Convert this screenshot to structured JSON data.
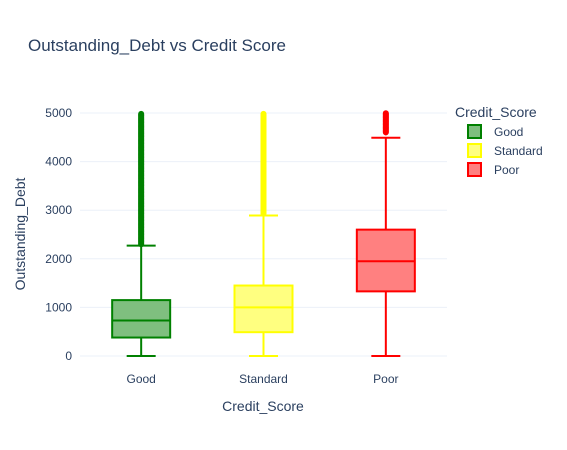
{
  "chart_data": {
    "type": "box",
    "title": "Outstanding_Debt vs Credit Score",
    "xlabel": "Credit_Score",
    "ylabel": "Outstanding_Debt",
    "ylim": [
      0,
      5000
    ],
    "yticks": [
      0,
      1000,
      2000,
      3000,
      4000,
      5000
    ],
    "grid": true,
    "legend": {
      "title": "Credit_Score",
      "position": "top-right"
    },
    "categories": [
      "Good",
      "Standard",
      "Poor"
    ],
    "series": [
      {
        "name": "Good",
        "color": "#008000",
        "fill": "#7fbf7f",
        "min": 0,
        "q1": 380,
        "median": 730,
        "q3": 1150,
        "max": 2270,
        "outliers_from": 2300,
        "outliers_to": 4998
      },
      {
        "name": "Standard",
        "color": "#ffff00",
        "fill": "#ffff80",
        "min": 0,
        "q1": 490,
        "median": 1000,
        "q3": 1450,
        "max": 2890,
        "outliers_from": 2930,
        "outliers_to": 4998
      },
      {
        "name": "Poor",
        "color": "#ff0000",
        "fill": "#ff8080",
        "min": 0,
        "q1": 1330,
        "median": 1950,
        "q3": 2600,
        "max": 4490,
        "outliers_from": 4600,
        "outliers_to": 4998
      }
    ]
  }
}
